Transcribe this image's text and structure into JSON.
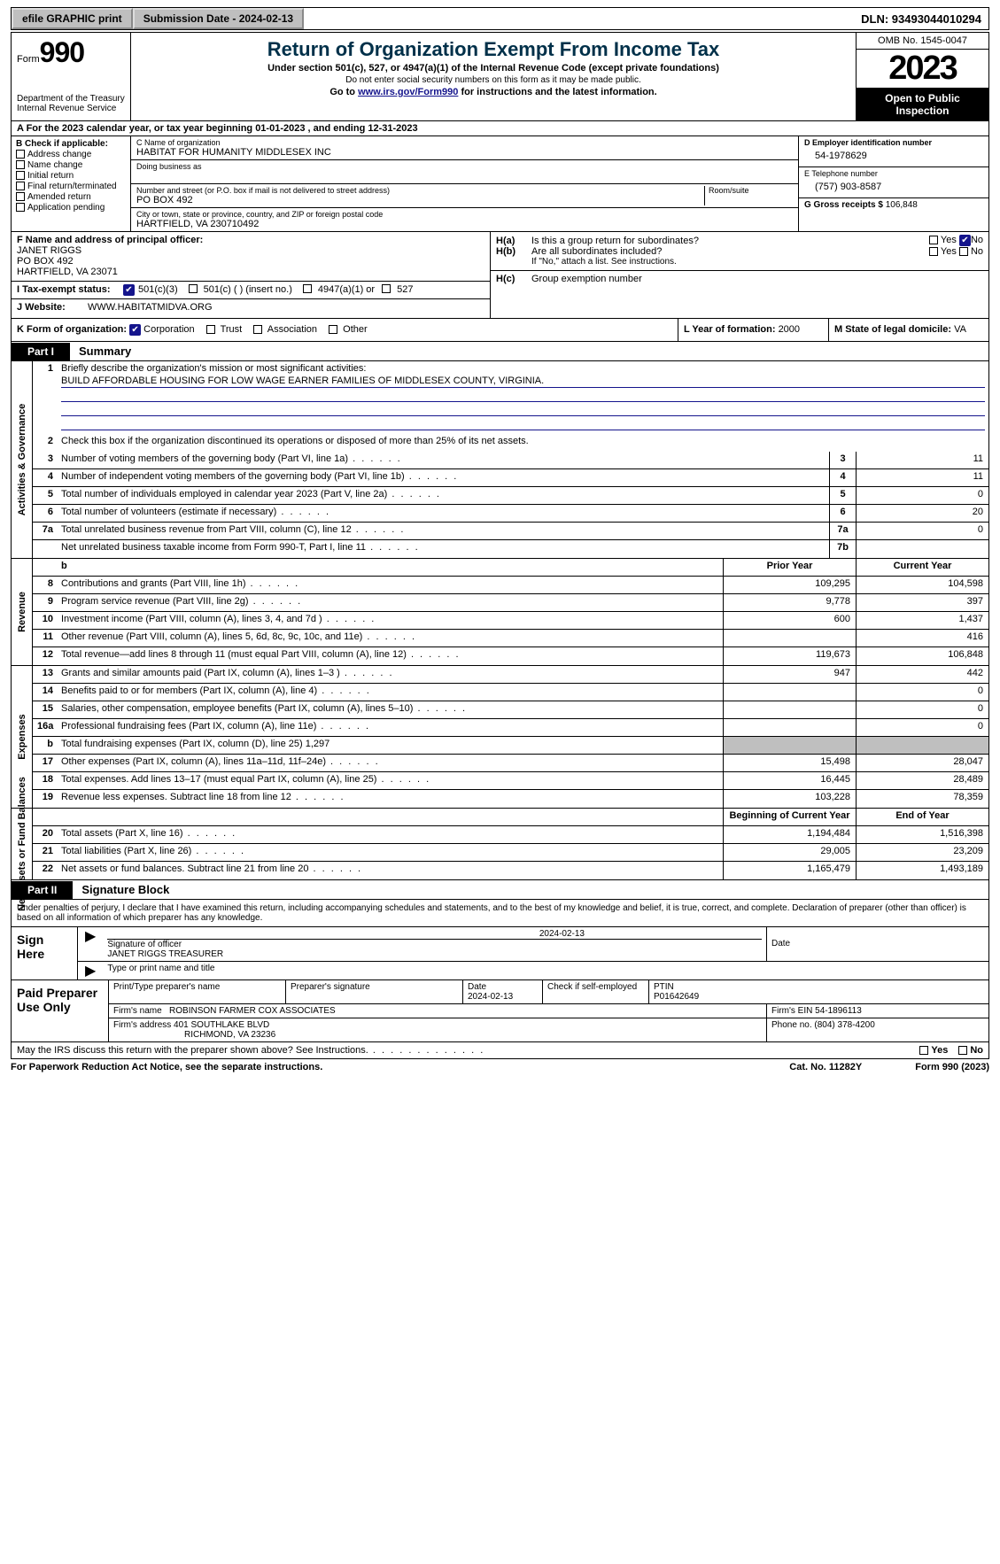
{
  "topbar": {
    "efile_btn": "efile GRAPHIC print",
    "sub_date_label": "Submission Date - 2024-02-13",
    "dln": "DLN: 93493044010294"
  },
  "header": {
    "form_label": "Form",
    "form_num": "990",
    "title": "Return of Organization Exempt From Income Tax",
    "sub1": "Under section 501(c), 527, or 4947(a)(1) of the Internal Revenue Code (except private foundations)",
    "sub2": "Do not enter social security numbers on this form as it may be made public.",
    "goto_pre": "Go to ",
    "goto_link": "www.irs.gov/Form990",
    "goto_post": " for instructions and the latest information.",
    "dept": "Department of the Treasury Internal Revenue Service",
    "omb": "OMB No. 1545-0047",
    "year": "2023",
    "inspection": "Open to Public Inspection"
  },
  "rowA": "A For the 2023 calendar year, or tax year beginning 01-01-2023   , and ending 12-31-2023",
  "boxB": {
    "label": "B Check if applicable:",
    "items": [
      "Address change",
      "Name change",
      "Initial return",
      "Final return/terminated",
      "Amended return",
      "Application pending"
    ]
  },
  "boxC": {
    "name_lbl": "C Name of organization",
    "name": "HABITAT FOR HUMANITY MIDDLESEX INC",
    "dba_lbl": "Doing business as",
    "addr_lbl": "Number and street (or P.O. box if mail is not delivered to street address)",
    "room_lbl": "Room/suite",
    "addr": "PO BOX 492",
    "city_lbl": "City or town, state or province, country, and ZIP or foreign postal code",
    "city": "HARTFIELD, VA  230710492"
  },
  "boxD": {
    "ein_lbl": "D Employer identification number",
    "ein": "54-1978629",
    "phone_lbl": "E Telephone number",
    "phone": "(757) 903-8587",
    "gross_lbl": "G Gross receipts $ ",
    "gross": "106,848"
  },
  "boxF": {
    "lbl": "F  Name and address of principal officer:",
    "name": "JANET RIGGS",
    "addr1": "PO BOX 492",
    "addr2": "HARTFIELD, VA  23071"
  },
  "boxH": {
    "a_lbl": "H(a)",
    "a_txt": "Is this a group return for subordinates?",
    "b_lbl": "H(b)",
    "b_txt": "Are all subordinates included?",
    "note": "If \"No,\" attach a list. See instructions.",
    "c_lbl": "H(c)",
    "c_txt": "Group exemption number",
    "yes": "Yes",
    "no": "No"
  },
  "rowI": {
    "lbl": "I   Tax-exempt status:",
    "o1": "501(c)(3)",
    "o2": "501(c) (  ) (insert no.)",
    "o3": "4947(a)(1) or",
    "o4": "527"
  },
  "rowJ": {
    "lbl": "J   Website:",
    "val": "WWW.HABITATMIDVA.ORG"
  },
  "rowK": {
    "lbl": "K Form of organization:",
    "o1": "Corporation",
    "o2": "Trust",
    "o3": "Association",
    "o4": "Other",
    "L_lbl": "L Year of formation: ",
    "L_val": "2000",
    "M_lbl": "M State of legal domicile: ",
    "M_val": "VA"
  },
  "part1": {
    "tag": "Part I",
    "title": "Summary"
  },
  "sections": {
    "gov": {
      "label": "Activities & Governance",
      "l1_lbl": "Briefly describe the organization's mission or most significant activities:",
      "l1_val": "BUILD AFFORDABLE HOUSING FOR LOW WAGE EARNER FAMILIES OF MIDDLESEX COUNTY, VIRGINIA.",
      "l2": "Check this box      if the organization discontinued its operations or disposed of more than 25% of its net assets.",
      "lines": [
        {
          "n": "3",
          "d": "Number of voting members of the governing body (Part VI, line 1a)",
          "box": "3",
          "v": "11"
        },
        {
          "n": "4",
          "d": "Number of independent voting members of the governing body (Part VI, line 1b)",
          "box": "4",
          "v": "11"
        },
        {
          "n": "5",
          "d": "Total number of individuals employed in calendar year 2023 (Part V, line 2a)",
          "box": "5",
          "v": "0"
        },
        {
          "n": "6",
          "d": "Total number of volunteers (estimate if necessary)",
          "box": "6",
          "v": "20"
        },
        {
          "n": "7a",
          "d": "Total unrelated business revenue from Part VIII, column (C), line 12",
          "box": "7a",
          "v": "0"
        },
        {
          "n": "",
          "d": "Net unrelated business taxable income from Form 990-T, Part I, line 11",
          "box": "7b",
          "v": ""
        }
      ]
    },
    "rev": {
      "label": "Revenue",
      "hdr_prior": "Prior Year",
      "hdr_curr": "Current Year",
      "lines": [
        {
          "n": "8",
          "d": "Contributions and grants (Part VIII, line 1h)",
          "p": "109,295",
          "c": "104,598"
        },
        {
          "n": "9",
          "d": "Program service revenue (Part VIII, line 2g)",
          "p": "9,778",
          "c": "397"
        },
        {
          "n": "10",
          "d": "Investment income (Part VIII, column (A), lines 3, 4, and 7d )",
          "p": "600",
          "c": "1,437"
        },
        {
          "n": "11",
          "d": "Other revenue (Part VIII, column (A), lines 5, 6d, 8c, 9c, 10c, and 11e)",
          "p": "",
          "c": "416"
        },
        {
          "n": "12",
          "d": "Total revenue—add lines 8 through 11 (must equal Part VIII, column (A), line 12)",
          "p": "119,673",
          "c": "106,848"
        }
      ]
    },
    "exp": {
      "label": "Expenses",
      "lines": [
        {
          "n": "13",
          "d": "Grants and similar amounts paid (Part IX, column (A), lines 1–3 )",
          "p": "947",
          "c": "442"
        },
        {
          "n": "14",
          "d": "Benefits paid to or for members (Part IX, column (A), line 4)",
          "p": "",
          "c": "0"
        },
        {
          "n": "15",
          "d": "Salaries, other compensation, employee benefits (Part IX, column (A), lines 5–10)",
          "p": "",
          "c": "0"
        },
        {
          "n": "16a",
          "d": "Professional fundraising fees (Part IX, column (A), line 11e)",
          "p": "",
          "c": "0"
        },
        {
          "n": "b",
          "d": "Total fundraising expenses (Part IX, column (D), line 25) 1,297",
          "shaded": true
        },
        {
          "n": "17",
          "d": "Other expenses (Part IX, column (A), lines 11a–11d, 11f–24e)",
          "p": "15,498",
          "c": "28,047"
        },
        {
          "n": "18",
          "d": "Total expenses. Add lines 13–17 (must equal Part IX, column (A), line 25)",
          "p": "16,445",
          "c": "28,489"
        },
        {
          "n": "19",
          "d": "Revenue less expenses. Subtract line 18 from line 12",
          "p": "103,228",
          "c": "78,359"
        }
      ]
    },
    "net": {
      "label": "Net Assets or Fund Balances",
      "hdr_beg": "Beginning of Current Year",
      "hdr_end": "End of Year",
      "lines": [
        {
          "n": "20",
          "d": "Total assets (Part X, line 16)",
          "p": "1,194,484",
          "c": "1,516,398"
        },
        {
          "n": "21",
          "d": "Total liabilities (Part X, line 26)",
          "p": "29,005",
          "c": "23,209"
        },
        {
          "n": "22",
          "d": "Net assets or fund balances. Subtract line 21 from line 20",
          "p": "1,165,479",
          "c": "1,493,189"
        }
      ]
    }
  },
  "part2": {
    "tag": "Part II",
    "title": "Signature Block"
  },
  "sig": {
    "perjury": "Under penalties of perjury, I declare that I have examined this return, including accompanying schedules and statements, and to the best of my knowledge and belief, it is true, correct, and complete. Declaration of preparer (other than officer) is based on all information of which preparer has any knowledge.",
    "sign_here": "Sign Here",
    "sig_officer_lbl": "Signature of officer",
    "sig_officer": "JANET RIGGS  TREASURER",
    "date_lbl": "Date",
    "date": "2024-02-13",
    "name_title_lbl": "Type or print name and title",
    "paid": "Paid Preparer Use Only",
    "prep_name_lbl": "Print/Type preparer's name",
    "prep_sig_lbl": "Preparer's signature",
    "prep_date": "2024-02-13",
    "check_self": "Check         if self-employed",
    "ptin_lbl": "PTIN",
    "ptin": "P01642649",
    "firm_name_lbl": "Firm's name",
    "firm_name": "ROBINSON FARMER COX ASSOCIATES",
    "firm_ein_lbl": "Firm's EIN",
    "firm_ein": "54-1896113",
    "firm_addr_lbl": "Firm's address",
    "firm_addr1": "401 SOUTHLAKE BLVD",
    "firm_addr2": "RICHMOND, VA  23236",
    "firm_phone_lbl": "Phone no.",
    "firm_phone": "(804) 378-4200"
  },
  "footer": {
    "discuss": "May the IRS discuss this return with the preparer shown above? See Instructions.",
    "yes": "Yes",
    "no": "No",
    "paperwork": "For Paperwork Reduction Act Notice, see the separate instructions.",
    "cat": "Cat. No. 11282Y",
    "form": "Form 990 (2023)"
  }
}
